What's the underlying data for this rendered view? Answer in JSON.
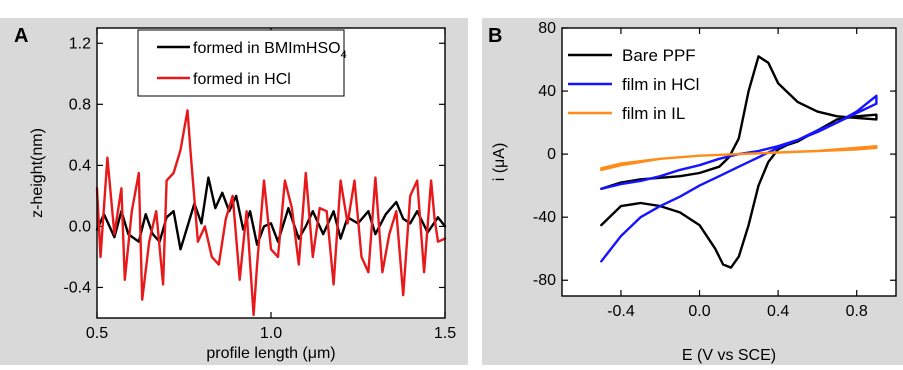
{
  "colors": {
    "panel_background": "#d9d9d9",
    "plot_background": "#ffffff",
    "black_series": "#000000",
    "red_series": "#e8191b",
    "blue_series": "#1414ff",
    "orange_series": "#ff8c1a"
  },
  "chart_data": [
    {
      "panel_label": "A",
      "type": "line",
      "xlabel": "profile length (μm)",
      "ylabel": "z-height(nm)",
      "xlim": [
        0.5,
        1.5
      ],
      "ylim": [
        -0.6,
        1.3
      ],
      "xticks": [
        0.5,
        1.0,
        1.5
      ],
      "xtick_labels": [
        "0.5",
        "1.0",
        "1.5"
      ],
      "yticks": [
        -0.4,
        0.0,
        0.4,
        0.8,
        1.2
      ],
      "ytick_labels": [
        "-0.4",
        "0.0",
        "0.4",
        "0.8",
        "1.2"
      ],
      "grid": false,
      "legend_position": "top-right",
      "series": [
        {
          "name": "formed in BMImHSO4",
          "legend_label_main": "formed in BMImHSO",
          "legend_label_sub": "4",
          "color": "#000000",
          "x": [
            0.5,
            0.52,
            0.55,
            0.57,
            0.59,
            0.62,
            0.64,
            0.66,
            0.68,
            0.7,
            0.72,
            0.74,
            0.76,
            0.78,
            0.8,
            0.82,
            0.84,
            0.86,
            0.88,
            0.9,
            0.92,
            0.94,
            0.96,
            0.98,
            1.0,
            1.02,
            1.05,
            1.08,
            1.1,
            1.12,
            1.15,
            1.18,
            1.2,
            1.22,
            1.25,
            1.28,
            1.3,
            1.33,
            1.36,
            1.38,
            1.4,
            1.42,
            1.45,
            1.48,
            1.5
          ],
          "y": [
            -0.02,
            0.08,
            -0.07,
            0.1,
            -0.05,
            -0.1,
            0.08,
            -0.05,
            -0.1,
            0.06,
            0.1,
            -0.15,
            0.0,
            0.15,
            0.02,
            0.32,
            0.12,
            0.22,
            0.1,
            0.2,
            -0.02,
            0.1,
            -0.12,
            0.0,
            0.02,
            -0.1,
            0.12,
            -0.08,
            0.0,
            0.1,
            -0.05,
            0.1,
            -0.08,
            0.06,
            0.02,
            0.1,
            -0.05,
            0.08,
            0.16,
            0.05,
            0.02,
            0.1,
            -0.04,
            0.06,
            0.0
          ]
        },
        {
          "name": "formed in HCl",
          "legend_label_main": "formed in HCl",
          "color": "#e8191b",
          "x": [
            0.5,
            0.51,
            0.53,
            0.55,
            0.57,
            0.58,
            0.6,
            0.62,
            0.63,
            0.65,
            0.67,
            0.69,
            0.7,
            0.72,
            0.74,
            0.76,
            0.77,
            0.79,
            0.81,
            0.83,
            0.85,
            0.87,
            0.89,
            0.91,
            0.93,
            0.95,
            0.96,
            0.98,
            1.0,
            1.02,
            1.04,
            1.06,
            1.08,
            1.1,
            1.12,
            1.14,
            1.16,
            1.18,
            1.2,
            1.22,
            1.24,
            1.26,
            1.28,
            1.3,
            1.32,
            1.34,
            1.36,
            1.38,
            1.4,
            1.42,
            1.44,
            1.46,
            1.47,
            1.48,
            1.5
          ],
          "y": [
            0.25,
            -0.2,
            0.45,
            -0.05,
            0.25,
            -0.35,
            0.1,
            0.35,
            -0.48,
            -0.1,
            0.1,
            -0.38,
            0.3,
            0.35,
            0.5,
            0.76,
            0.45,
            -0.1,
            0.0,
            -0.2,
            -0.25,
            0.05,
            0.2,
            -0.35,
            0.1,
            -0.58,
            -0.25,
            0.3,
            -0.15,
            -0.2,
            0.3,
            0.12,
            -0.25,
            0.35,
            -0.2,
            0.12,
            0.1,
            -0.38,
            0.3,
            0.02,
            0.3,
            -0.2,
            -0.3,
            0.32,
            -0.3,
            -0.05,
            0.1,
            -0.45,
            0.2,
            0.3,
            -0.3,
            0.3,
            0.05,
            -0.1,
            -0.08
          ]
        }
      ]
    },
    {
      "panel_label": "B",
      "type": "line",
      "xlabel": "E (V vs SCE)",
      "ylabel": "i (μA)",
      "xlim": [
        -0.7,
        1.0
      ],
      "ylim": [
        -90,
        80
      ],
      "xticks": [
        -0.4,
        0.0,
        0.4,
        0.8
      ],
      "xtick_labels": [
        "-0.4",
        "0.0",
        "0.4",
        "0.8"
      ],
      "yticks": [
        -80,
        -40,
        0,
        40,
        80
      ],
      "ytick_labels": [
        "-80",
        "-40",
        "0",
        "40",
        "80"
      ],
      "grid": false,
      "legend_position": "top-left",
      "series": [
        {
          "name": "Bare PPF",
          "color": "#000000",
          "x": [
            -0.5,
            -0.4,
            -0.3,
            -0.2,
            -0.1,
            0.0,
            0.1,
            0.15,
            0.2,
            0.25,
            0.3,
            0.35,
            0.4,
            0.5,
            0.6,
            0.7,
            0.8,
            0.9,
            0.9,
            0.8,
            0.7,
            0.6,
            0.5,
            0.45,
            0.4,
            0.35,
            0.3,
            0.25,
            0.2,
            0.16,
            0.12,
            0.08,
            0.0,
            -0.1,
            -0.2,
            -0.3,
            -0.4,
            -0.5,
            -0.5
          ],
          "y": [
            -22,
            -18,
            -16,
            -15,
            -14,
            -12,
            -8,
            -2,
            10,
            40,
            62,
            58,
            45,
            33,
            27,
            24,
            23,
            22,
            25,
            24,
            22,
            15,
            8,
            6,
            3,
            -5,
            -20,
            -45,
            -65,
            -72,
            -70,
            -60,
            -45,
            -37,
            -33,
            -31,
            -33,
            -45,
            -45
          ]
        },
        {
          "name": "film in HCl",
          "color": "#1414ff",
          "x": [
            -0.5,
            -0.4,
            -0.3,
            -0.2,
            -0.1,
            0.0,
            0.1,
            0.2,
            0.3,
            0.4,
            0.5,
            0.6,
            0.7,
            0.8,
            0.9,
            0.9,
            0.8,
            0.7,
            0.6,
            0.5,
            0.4,
            0.3,
            0.2,
            0.1,
            0.0,
            -0.1,
            -0.2,
            -0.3,
            -0.4,
            -0.5,
            -0.5
          ],
          "y": [
            -22,
            -19,
            -17,
            -14,
            -10,
            -7,
            -3,
            0,
            2,
            5,
            9,
            14,
            20,
            27,
            37,
            32,
            26,
            20,
            15,
            9,
            4,
            -2,
            -8,
            -14,
            -20,
            -27,
            -33,
            -40,
            -52,
            -68,
            -68
          ]
        },
        {
          "name": "film in IL",
          "color": "#ff8c1a",
          "x": [
            -0.5,
            -0.4,
            -0.2,
            0.0,
            0.2,
            0.4,
            0.6,
            0.8,
            0.9,
            0.9,
            0.8,
            0.6,
            0.4,
            0.2,
            0.0,
            -0.2,
            -0.4,
            -0.5,
            -0.5
          ],
          "y": [
            -10,
            -7,
            -3,
            -1,
            0,
            1,
            2,
            4,
            5,
            4,
            3,
            2,
            1,
            0,
            -1,
            -3,
            -6,
            -9,
            -10
          ]
        }
      ]
    }
  ]
}
